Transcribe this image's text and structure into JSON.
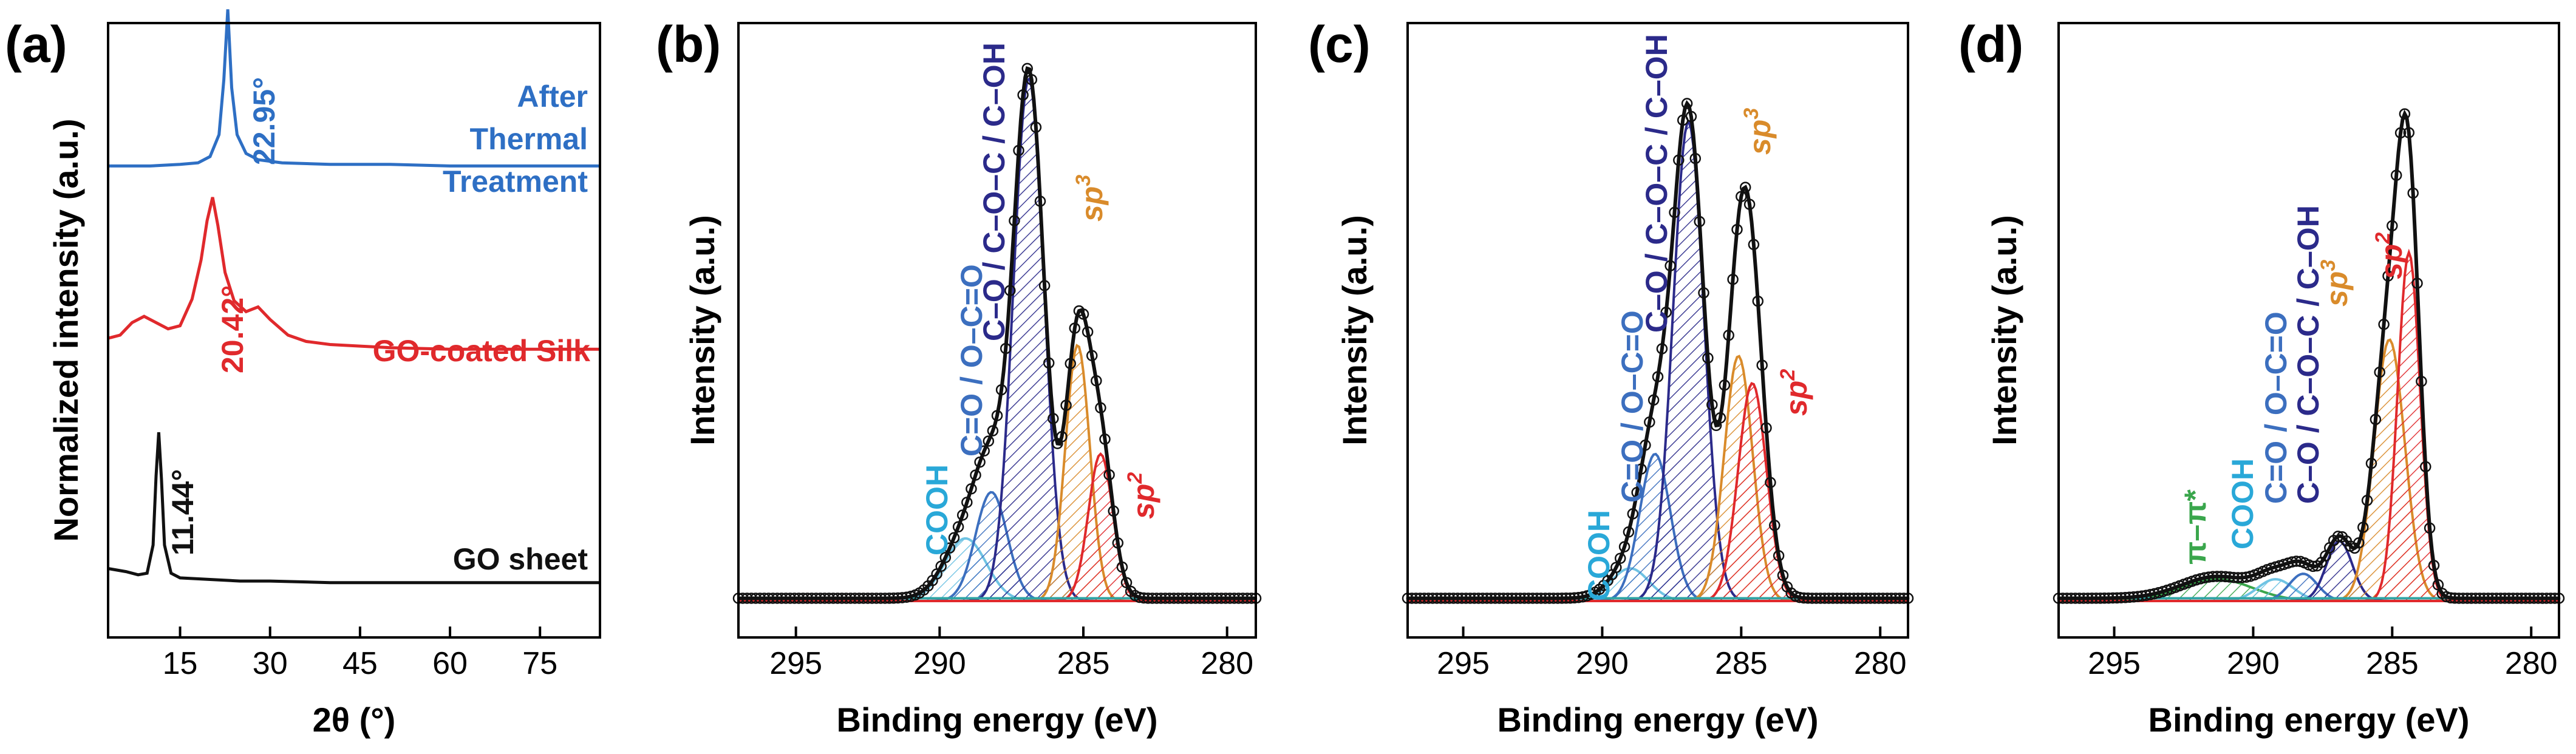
{
  "colors": {
    "black": "#111111",
    "blue": "#2e6fc4",
    "red": "#e0292c",
    "orange": "#d98b2b",
    "navy": "#2b2a8a",
    "mid_blue": "#3c6fbf",
    "light_blue": "#29a8d8",
    "sky": "#6fc3e3",
    "green": "#3aa64c"
  },
  "chart_data": [
    {
      "type": "line",
      "panel": "(a)",
      "xlabel": "2θ (°)",
      "ylabel": "Normalized intensity (a.u.)",
      "xlim": [
        3,
        85
      ],
      "x_ticks": [
        15,
        30,
        45,
        60,
        75
      ],
      "x_tick_labels": [
        "15",
        "30",
        "45",
        "60",
        "75"
      ],
      "series": [
        {
          "name": "GO sheet",
          "color": "#111111",
          "offset": 0,
          "x": [
            3,
            6,
            8,
            9.5,
            10.5,
            11.0,
            11.44,
            11.9,
            12.4,
            13.5,
            15,
            20,
            25,
            30,
            40,
            50,
            60,
            70,
            85
          ],
          "y": [
            0.13,
            0.11,
            0.09,
            0.1,
            0.28,
            0.72,
            1.0,
            0.7,
            0.28,
            0.1,
            0.07,
            0.06,
            0.05,
            0.05,
            0.04,
            0.04,
            0.04,
            0.04,
            0.04
          ]
        },
        {
          "name": "GO-coated Silk",
          "color": "#e0292c",
          "offset": 1.5,
          "x": [
            3,
            5,
            7,
            9,
            11,
            13,
            15,
            17,
            18.5,
            19.5,
            20.42,
            21.3,
            22.5,
            24,
            26,
            28,
            30,
            33,
            36,
            40,
            45,
            50,
            60,
            70,
            85
          ],
          "y": [
            0.1,
            0.12,
            0.2,
            0.24,
            0.2,
            0.16,
            0.18,
            0.35,
            0.6,
            0.85,
            1.0,
            0.82,
            0.52,
            0.34,
            0.27,
            0.3,
            0.22,
            0.12,
            0.08,
            0.06,
            0.05,
            0.04,
            0.03,
            0.03,
            0.03
          ]
        },
        {
          "name": "After Thermal Treatment",
          "color": "#2e6fc4",
          "offset": 2.7,
          "x": [
            3,
            10,
            15,
            18,
            20,
            21.5,
            22.3,
            22.95,
            23.6,
            24.5,
            26,
            28,
            32,
            40,
            50,
            60,
            70,
            85
          ],
          "y": [
            0.0,
            0.0,
            0.01,
            0.02,
            0.06,
            0.2,
            0.55,
            1.0,
            0.5,
            0.2,
            0.08,
            0.04,
            0.02,
            0.01,
            0.01,
            0.0,
            0.0,
            0.0
          ]
        }
      ],
      "annotations": [
        {
          "text": "22.95°",
          "color": "#2e6fc4"
        },
        {
          "text": "20.42°",
          "color": "#e0292c"
        },
        {
          "text": "11.44°",
          "color": "#111111"
        }
      ],
      "legend_labels": [
        {
          "text": "After",
          "color": "#2e6fc4"
        },
        {
          "text": "Thermal",
          "color": "#2e6fc4"
        },
        {
          "text": "Treatment",
          "color": "#2e6fc4"
        },
        {
          "text": "GO-coated Silk",
          "color": "#e0292c"
        },
        {
          "text": "GO sheet",
          "color": "#111111"
        }
      ]
    },
    {
      "type": "area",
      "panel": "(b)",
      "xlabel": "Binding energy (eV)",
      "ylabel": "Intensity (a.u.)",
      "xlim": [
        297,
        279
      ],
      "ylim": [
        0,
        1.05
      ],
      "x_ticks": [
        295,
        290,
        285,
        280
      ],
      "x_tick_labels": [
        "295",
        "290",
        "285",
        "280"
      ],
      "baseline": 0.005,
      "components": [
        {
          "name": "COOH",
          "center": 289.1,
          "amp": 0.115,
          "width": 1.7,
          "color": "#6fc3e3"
        },
        {
          "name": "C=O / O–C=O",
          "center": 288.2,
          "amp": 0.2,
          "width": 1.3,
          "color": "#3c6fbf"
        },
        {
          "name": "C–O / C–O–C / C–OH",
          "center": 286.9,
          "amp": 0.96,
          "width": 1.25,
          "color": "#2b2a8a"
        },
        {
          "name": "sp3",
          "center": 285.2,
          "amp": 0.47,
          "width": 1.0,
          "color": "#d98b2b"
        },
        {
          "name": "sp2",
          "center": 284.4,
          "amp": 0.27,
          "width": 1.0,
          "color": "#e0292c"
        }
      ],
      "labels": [
        {
          "text": "COOH",
          "color": "#29a8d8"
        },
        {
          "text": "C=O / O–C=O",
          "color": "#3c6fbf"
        },
        {
          "text": "C–O / C–O–C / C–OH",
          "color": "#2b2a8a"
        },
        {
          "text": "sp",
          "sup": "3",
          "color": "#d98b2b"
        },
        {
          "text": "sp",
          "sup": "2",
          "color": "#e0292c"
        }
      ]
    },
    {
      "type": "area",
      "panel": "(c)",
      "xlabel": "Binding energy (eV)",
      "ylabel": "Intensity (a.u.)",
      "xlim": [
        297,
        279
      ],
      "ylim": [
        0,
        1.05
      ],
      "x_ticks": [
        295,
        290,
        285,
        280
      ],
      "x_tick_labels": [
        "295",
        "290",
        "285",
        "280"
      ],
      "baseline": 0.005,
      "components": [
        {
          "name": "COOH",
          "center": 289.0,
          "amp": 0.06,
          "width": 1.6,
          "color": "#6fc3e3"
        },
        {
          "name": "C=O / O–C=O",
          "center": 288.1,
          "amp": 0.27,
          "width": 1.3,
          "color": "#3c6fbf"
        },
        {
          "name": "C–O / C–O–C / C–OH",
          "center": 286.9,
          "amp": 0.88,
          "width": 1.3,
          "color": "#2b2a8a"
        },
        {
          "name": "sp3",
          "center": 285.1,
          "amp": 0.45,
          "width": 1.2,
          "color": "#d98b2b"
        },
        {
          "name": "sp2",
          "center": 284.6,
          "amp": 0.4,
          "width": 1.2,
          "color": "#e0292c"
        }
      ],
      "labels": [
        {
          "text": "COOH",
          "color": "#29a8d8"
        },
        {
          "text": "C=O / O–C=O",
          "color": "#3c6fbf"
        },
        {
          "text": "C–O / C–O–C / C–OH",
          "color": "#2b2a8a"
        },
        {
          "text": "sp",
          "sup": "3",
          "color": "#d98b2b"
        },
        {
          "text": "sp",
          "sup": "2",
          "color": "#e0292c"
        }
      ]
    },
    {
      "type": "area",
      "panel": "(d)",
      "xlabel": "Binding energy (eV)",
      "ylabel": "Intensity (a.u.)",
      "xlim": [
        297,
        279
      ],
      "ylim": [
        0,
        1.05
      ],
      "x_ticks": [
        295,
        290,
        285,
        280
      ],
      "x_tick_labels": [
        "295",
        "290",
        "285",
        "280"
      ],
      "baseline": 0.005,
      "components": [
        {
          "name": "π–π*",
          "center": 291.3,
          "amp": 0.04,
          "width": 3.0,
          "color": "#3aa64c"
        },
        {
          "name": "COOH",
          "center": 289.2,
          "amp": 0.04,
          "width": 1.5,
          "color": "#6fc3e3"
        },
        {
          "name": "C=O / O–C=O",
          "center": 288.2,
          "amp": 0.05,
          "width": 1.2,
          "color": "#3c6fbf"
        },
        {
          "name": "C–O / C–O–C / C–OH",
          "center": 286.9,
          "amp": 0.11,
          "width": 1.1,
          "color": "#2b2a8a"
        },
        {
          "name": "sp3",
          "center": 285.1,
          "amp": 0.48,
          "width": 1.3,
          "color": "#d98b2b"
        },
        {
          "name": "sp2",
          "center": 284.4,
          "amp": 0.64,
          "width": 0.95,
          "color": "#e0292c"
        }
      ],
      "labels": [
        {
          "text": "π–π*",
          "color": "#3aa64c"
        },
        {
          "text": "COOH",
          "color": "#29a8d8"
        },
        {
          "text": "C=O / O–C=O",
          "color": "#3c6fbf"
        },
        {
          "text": "C–O / C–O–C / C–OH",
          "color": "#2b2a8a"
        },
        {
          "text": "sp",
          "sup": "3",
          "color": "#d98b2b"
        },
        {
          "text": "sp",
          "sup": "2",
          "color": "#e0292c"
        }
      ]
    }
  ]
}
